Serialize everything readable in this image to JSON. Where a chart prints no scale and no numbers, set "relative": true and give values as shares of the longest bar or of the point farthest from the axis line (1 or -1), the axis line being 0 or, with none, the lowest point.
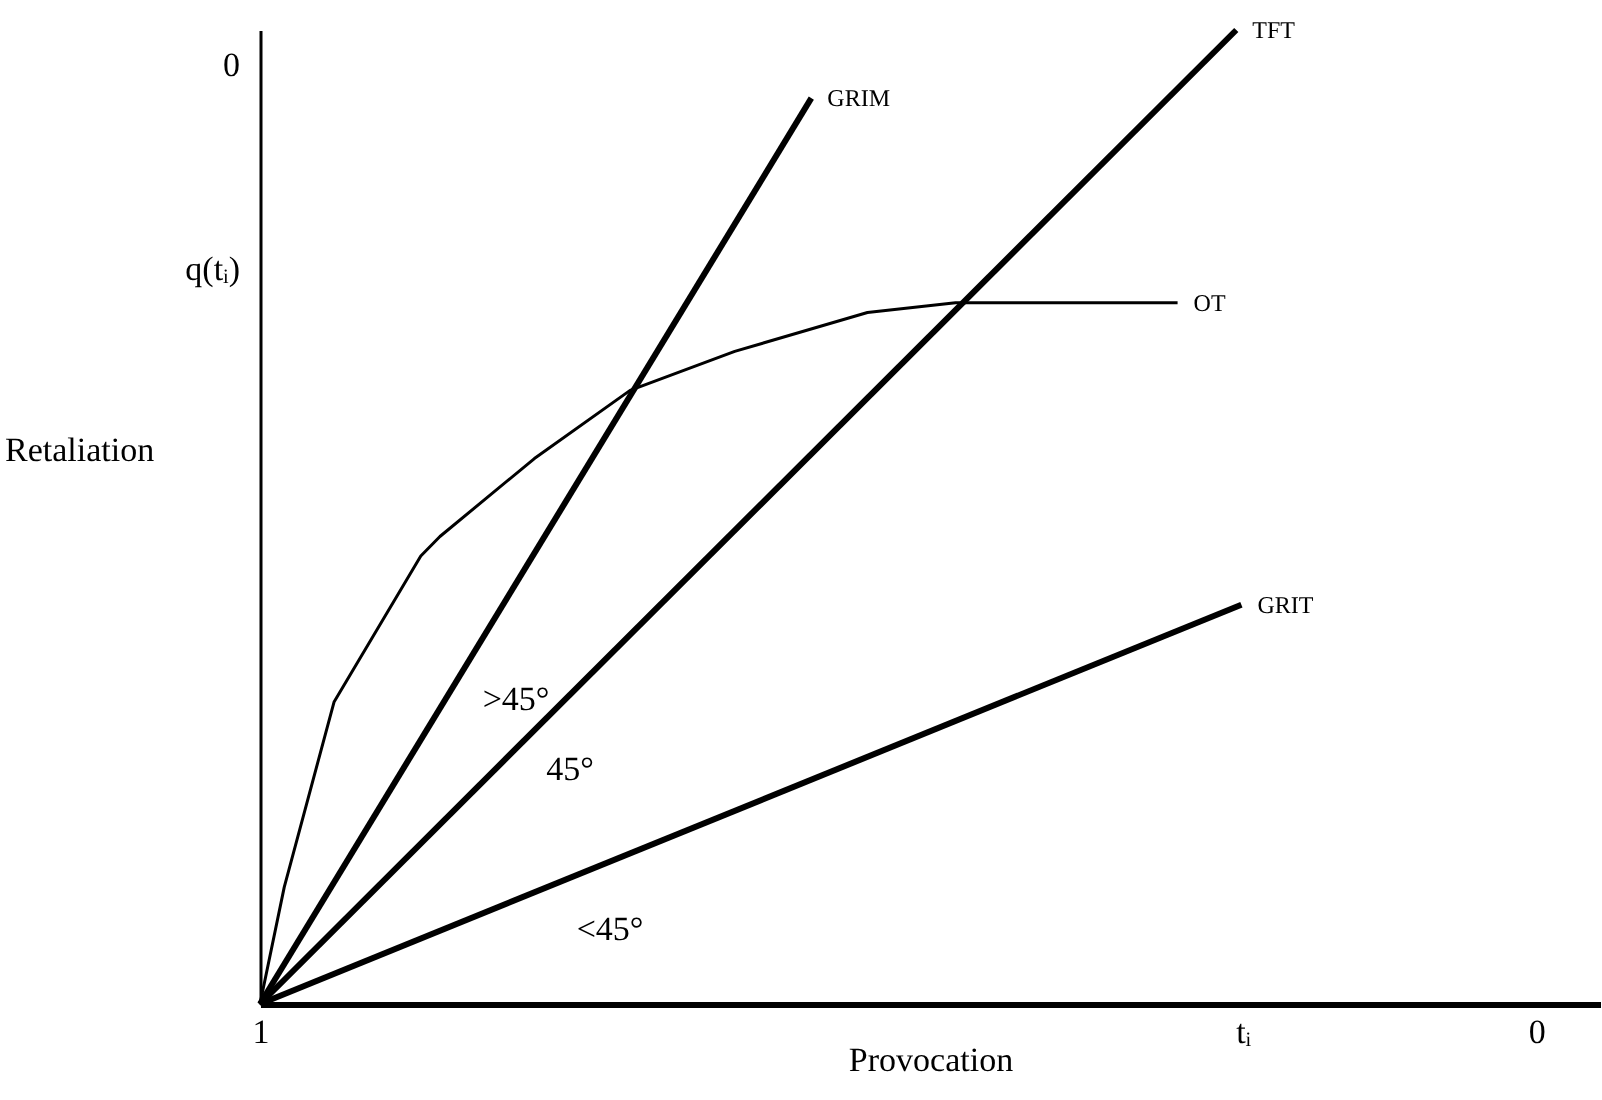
{
  "chart_data": {
    "type": "line",
    "relative": true,
    "xlabel": "Provocation",
    "ylabel": "Retaliation",
    "xlim": [
      1,
      -0.05
    ],
    "xticks": [
      1,
      {
        "value": 0.23,
        "label": "tᵢ"
      },
      0
    ],
    "series": [
      {
        "name": "GRIM",
        "color": "#000000",
        "x": [
          1,
          0.568
        ],
        "values": [
          0,
          0.93
        ]
      },
      {
        "name": "TFT",
        "color": "#000000",
        "x": [
          1,
          0.235
        ],
        "values": [
          0,
          1
        ]
      },
      {
        "name": "OT",
        "color": "#000000",
        "x": [
          1,
          0.981,
          0.942,
          0.874,
          0.859,
          0.785,
          0.71,
          0.628,
          0.524,
          0.455,
          0.281
        ],
        "values": [
          0,
          0.12,
          0.31,
          0.46,
          0.48,
          0.56,
          0.63,
          0.67,
          0.71,
          0.72,
          0.72
        ]
      },
      {
        "name": "GRIT",
        "color": "#000000",
        "x": [
          1,
          0.231
        ],
        "values": [
          0,
          0.41
        ]
      }
    ],
    "annotations": [
      "0",
      "q(tᵢ)",
      ">45°",
      "45°",
      "<45°"
    ],
    "grid": false,
    "marker": "none",
    "line_style": "solid"
  }
}
